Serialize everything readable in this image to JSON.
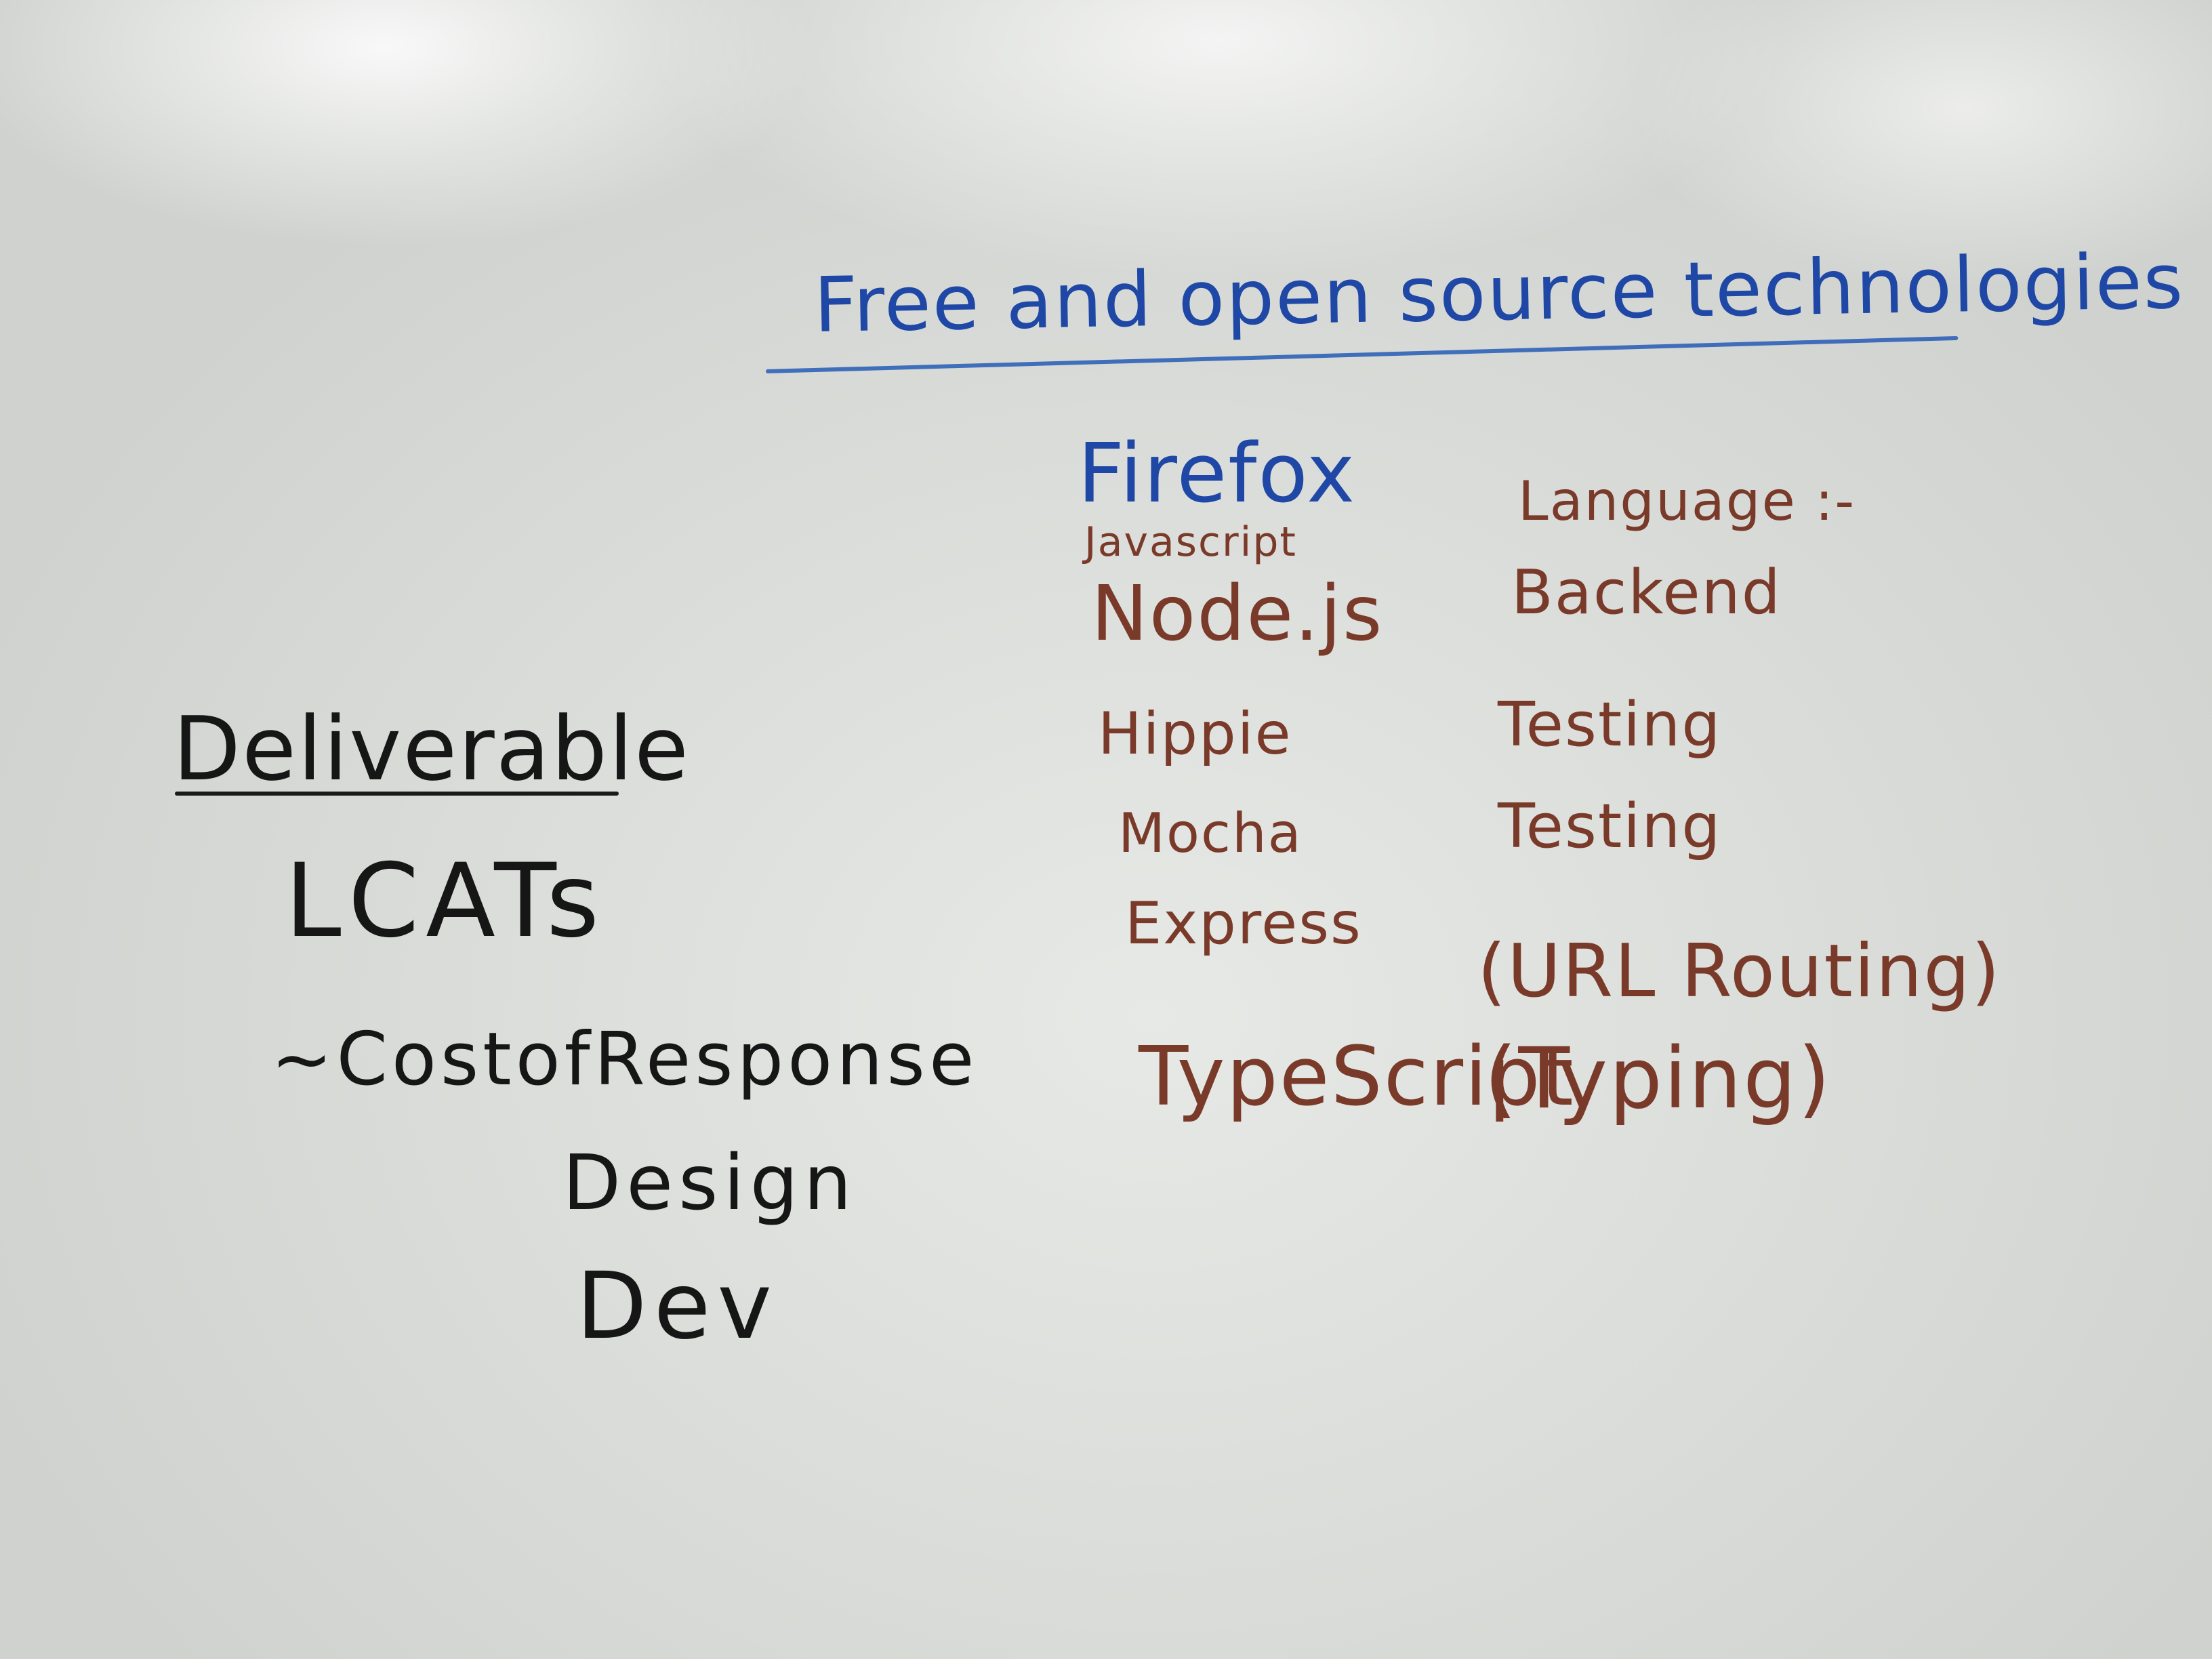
{
  "colors": {
    "board": "#e4e6e3",
    "blue_marker": "#1f48a6",
    "brown_marker": "#7a3a2a",
    "black_marker": "#161616"
  },
  "title": "Free and open source technologies",
  "technologies": [
    {
      "name": "Firefox",
      "note": ""
    },
    {
      "name": "Javascript",
      "note": "Language :-"
    },
    {
      "name": "Node.js",
      "note": "Backend"
    },
    {
      "name": "Hippie",
      "note": "Testing"
    },
    {
      "name": "Mocha",
      "note": "Testing"
    },
    {
      "name": "Express",
      "note": "(URL Routing)"
    },
    {
      "name": "TypeScript",
      "note": "(Typing)"
    }
  ],
  "deliverable": {
    "heading": "Deliverable",
    "items": [
      "LCATs",
      "~CostofResponse",
      "Design",
      "Dev"
    ]
  }
}
